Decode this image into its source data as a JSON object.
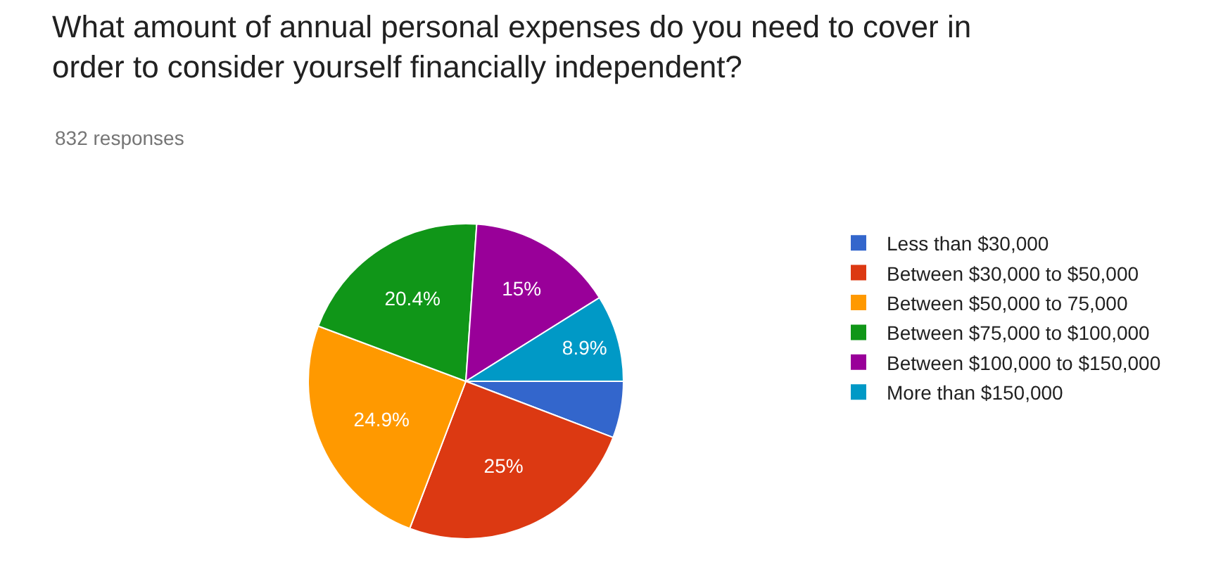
{
  "chart_data": {
    "type": "pie",
    "title": "What amount of annual personal expenses do you need to cover in order to consider yourself financially independent?",
    "subtitle": "832 responses",
    "categories": [
      "Less than $30,000",
      "Between $30,000 to $50,000",
      "Between $50,000 to 75,000",
      "Between $75,000 to $100,000",
      "Between $100,000 to $150,000",
      "More than $150,000"
    ],
    "values": [
      5.8,
      25,
      24.9,
      20.4,
      15,
      8.9
    ],
    "value_labels": [
      null,
      "25%",
      "24.9%",
      "20.4%",
      "15%",
      "8.9%"
    ],
    "colors": [
      "#3366cc",
      "#dc3912",
      "#ff9900",
      "#109618",
      "#990099",
      "#0099c6"
    ],
    "legend": "right"
  }
}
